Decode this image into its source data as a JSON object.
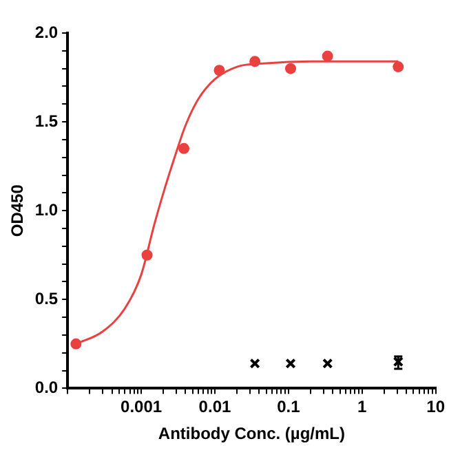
{
  "chart_data": {
    "type": "scatter",
    "xlabel": "Antibody Conc. (µg/mL)",
    "ylabel": "OD450",
    "log": "x",
    "grid": false,
    "legend": false,
    "xlim": [
      0.0001,
      10
    ],
    "xticks": [
      {
        "value": 0.0001,
        "label": null
      },
      {
        "value": 0.0002,
        "label": null
      },
      {
        "value": 0.0003,
        "label": null
      },
      {
        "value": 0.0004,
        "label": null
      },
      {
        "value": 0.0005,
        "label": null
      },
      {
        "value": 0.0006,
        "label": null
      },
      {
        "value": 0.0007,
        "label": null
      },
      {
        "value": 0.0008,
        "label": null
      },
      {
        "value": 0.0009,
        "label": null
      },
      0.001,
      {
        "value": 0.002,
        "label": null
      },
      {
        "value": 0.003,
        "label": null
      },
      {
        "value": 0.004,
        "label": null
      },
      {
        "value": 0.005,
        "label": null
      },
      {
        "value": 0.006,
        "label": null
      },
      {
        "value": 0.007,
        "label": null
      },
      {
        "value": 0.008,
        "label": null
      },
      {
        "value": 0.009,
        "label": null
      },
      0.01,
      {
        "value": 0.02,
        "label": null
      },
      {
        "value": 0.03,
        "label": null
      },
      {
        "value": 0.04,
        "label": null
      },
      {
        "value": 0.05,
        "label": null
      },
      {
        "value": 0.06,
        "label": null
      },
      {
        "value": 0.07,
        "label": null
      },
      {
        "value": 0.08,
        "label": null
      },
      {
        "value": 0.09,
        "label": null
      },
      0.1,
      {
        "value": 0.2,
        "label": null
      },
      {
        "value": 0.3,
        "label": null
      },
      {
        "value": 0.4,
        "label": null
      },
      {
        "value": 0.5,
        "label": null
      },
      {
        "value": 0.6,
        "label": null
      },
      {
        "value": 0.7,
        "label": null
      },
      {
        "value": 0.8,
        "label": null
      },
      {
        "value": 0.9,
        "label": null
      },
      1,
      {
        "value": 2,
        "label": null
      },
      {
        "value": 3,
        "label": null
      },
      {
        "value": 4,
        "label": null
      },
      {
        "value": 5,
        "label": null
      },
      {
        "value": 6,
        "label": null
      },
      {
        "value": 7,
        "label": null
      },
      {
        "value": 8,
        "label": null
      },
      {
        "value": 9,
        "label": null
      },
      10
    ],
    "ylim": [
      0,
      2
    ],
    "yticks": [
      {
        "value": 0,
        "label": "0.0"
      },
      {
        "value": 0.1,
        "label": null
      },
      {
        "value": 0.2,
        "label": null
      },
      {
        "value": 0.3,
        "label": null
      },
      {
        "value": 0.4,
        "label": null
      },
      {
        "value": 0.5,
        "label": "0.5"
      },
      {
        "value": 0.6,
        "label": null
      },
      {
        "value": 0.7,
        "label": null
      },
      {
        "value": 0.8,
        "label": null
      },
      {
        "value": 0.9,
        "label": null
      },
      {
        "value": 1,
        "label": "1.0"
      },
      {
        "value": 1.1,
        "label": null
      },
      {
        "value": 1.2,
        "label": null
      },
      {
        "value": 1.3,
        "label": null
      },
      {
        "value": 1.4,
        "label": null
      },
      {
        "value": 1.5,
        "label": "1.5"
      },
      {
        "value": 1.6,
        "label": null
      },
      {
        "value": 1.7,
        "label": null
      },
      {
        "value": 1.8,
        "label": null
      },
      {
        "value": 1.9,
        "label": null
      },
      {
        "value": 2,
        "label": "2.0"
      }
    ],
    "series": [
      {
        "type": "line",
        "color": "#e8413f",
        "marker": "none",
        "x": [
          0.00013,
          0.0003,
          0.0006,
          0.001,
          0.0015,
          0.002,
          0.003,
          0.004,
          0.006,
          0.01,
          0.02,
          0.05,
          0.2,
          3.1
        ],
        "values": [
          0.25,
          0.32,
          0.45,
          0.64,
          0.92,
          1.1,
          1.33,
          1.48,
          1.63,
          1.74,
          1.81,
          1.83,
          1.84,
          1.84
        ]
      },
      {
        "color": "#e8413f",
        "marker": "circle",
        "x": [
          0.00013,
          0.0012,
          0.0038,
          0.0115,
          0.035,
          0.107,
          0.34,
          3.1
        ],
        "values": [
          0.25,
          0.75,
          1.35,
          1.79,
          1.84,
          1.8,
          1.87,
          1.81
        ]
      },
      {
        "color": "#000000",
        "marker": "cross",
        "x": [
          0.035,
          0.107,
          0.34,
          3.1
        ],
        "values": [
          0.14,
          0.14,
          0.14,
          0.15
        ],
        "errors": [
          null,
          null,
          null,
          [
            0.11,
            0.18
          ]
        ]
      }
    ]
  }
}
